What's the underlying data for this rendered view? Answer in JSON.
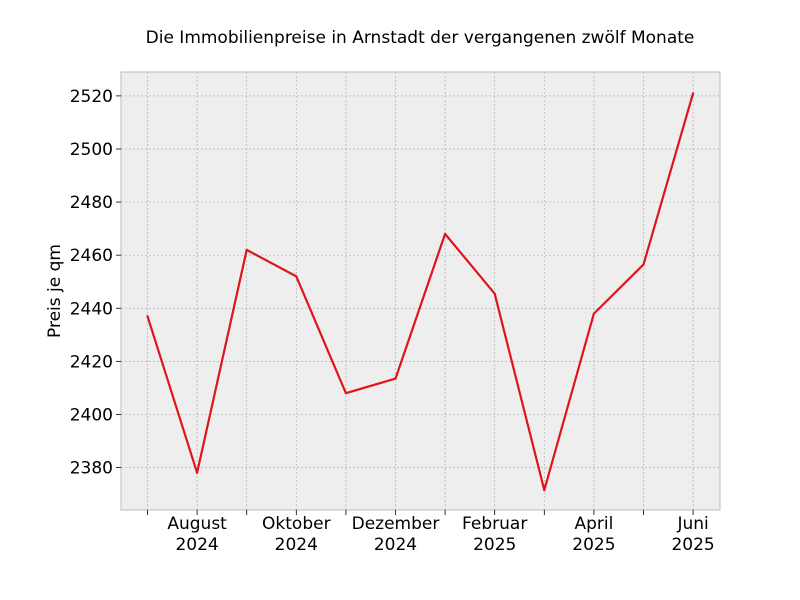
{
  "chart_data": {
    "type": "line",
    "title": "Die Immobilienpreise in Arnstadt der vergangenen zwölf Monate",
    "xlabel": "",
    "ylabel": "Preis je qm",
    "x": [
      "2024-07",
      "2024-08",
      "2024-09",
      "2024-10",
      "2024-11",
      "2024-12",
      "2025-01",
      "2025-02",
      "2025-03",
      "2025-04",
      "2025-05",
      "2025-06"
    ],
    "series": [
      {
        "values": [
          2437,
          2378,
          2462,
          2452,
          2408,
          2413.5,
          2468,
          2445.5,
          2371.5,
          2438,
          2456.5,
          2521
        ]
      }
    ],
    "ylim": [
      2364,
      2529
    ],
    "yticks": [
      "2380",
      "2400",
      "2420",
      "2440",
      "2460",
      "2480",
      "2500",
      "2520"
    ],
    "xticks": [
      {
        "x": "2024-08",
        "month": "August",
        "year": "2024"
      },
      {
        "x": "2024-10",
        "month": "Oktober",
        "year": "2024"
      },
      {
        "x": "2024-12",
        "month": "Dezember",
        "year": "2024"
      },
      {
        "x": "2025-02",
        "month": "Februar",
        "year": "2025"
      },
      {
        "x": "2025-04",
        "month": "April",
        "year": "2025"
      },
      {
        "x": "2025-06",
        "month": "Juni",
        "year": "2025"
      }
    ],
    "grid": true,
    "colors": {
      "line": "#e0141e",
      "plot_background": "#eeeeee",
      "grid": "#b0b0b0",
      "frame": "#bcbcbc"
    }
  }
}
